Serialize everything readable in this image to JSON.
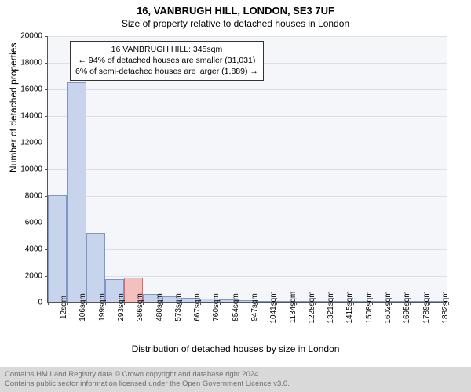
{
  "title": "16, VANBRUGH HILL, LONDON, SE3 7UF",
  "subtitle": "Size of property relative to detached houses in London",
  "y_axis_title": "Number of detached properties",
  "x_axis_title": "Distribution of detached houses by size in London",
  "chart": {
    "type": "histogram",
    "plot_background": "#f4f6fa",
    "grid_color": "#dcdfe6",
    "axis_color": "#555555",
    "bar_fill": "#c8d4eb",
    "bar_stroke": "#7f96c8",
    "highlight_fill": "#f3c0c0",
    "highlight_stroke": "#d46a6a",
    "ref_line_color": "#cc3333",
    "ylim": [
      0,
      20000
    ],
    "ytick_step": 2000,
    "bars": [
      {
        "value": 8000,
        "highlight": false
      },
      {
        "value": 16500,
        "highlight": false
      },
      {
        "value": 5200,
        "highlight": false
      },
      {
        "value": 1700,
        "highlight": false
      },
      {
        "value": 1800,
        "highlight": true
      },
      {
        "value": 600,
        "highlight": false
      },
      {
        "value": 400,
        "highlight": false
      },
      {
        "value": 300,
        "highlight": false
      },
      {
        "value": 250,
        "highlight": false
      },
      {
        "value": 200,
        "highlight": false
      },
      {
        "value": 100,
        "highlight": false
      },
      {
        "value": 80,
        "highlight": false
      },
      {
        "value": 60,
        "highlight": false
      },
      {
        "value": 50,
        "highlight": false
      },
      {
        "value": 40,
        "highlight": false
      },
      {
        "value": 30,
        "highlight": false
      },
      {
        "value": 20,
        "highlight": false
      },
      {
        "value": 15,
        "highlight": false
      },
      {
        "value": 10,
        "highlight": false
      },
      {
        "value": 10,
        "highlight": false
      },
      {
        "value": 5,
        "highlight": false
      }
    ],
    "x_labels": [
      "12sqm",
      "106sqm",
      "199sqm",
      "293sqm",
      "386sqm",
      "480sqm",
      "573sqm",
      "667sqm",
      "760sqm",
      "854sqm",
      "947sqm",
      "1041sqm",
      "1134sqm",
      "1228sqm",
      "1321sqm",
      "1415sqm",
      "1508sqm",
      "1602sqm",
      "1695sqm",
      "1789sqm",
      "1882sqm"
    ],
    "highlight_bar_index": 4,
    "ref_line_at_bar_right_edge": 3
  },
  "annotation": {
    "line1": "16 VANBRUGH HILL: 345sqm",
    "line2": "← 94% of detached houses are smaller (31,031)",
    "line3": "6% of semi-detached houses are larger (1,889) →"
  },
  "footer": {
    "line1": "Contains HM Land Registry data © Crown copyright and database right 2024.",
    "line2": "Contains public sector information licensed under the Open Government Licence v3.0."
  },
  "typography": {
    "title_fontsize": 13,
    "subtitle_fontsize": 12,
    "axis_title_fontsize": 12,
    "tick_fontsize": 10,
    "annotation_fontsize": 10.5,
    "footer_fontsize": 9.5
  }
}
